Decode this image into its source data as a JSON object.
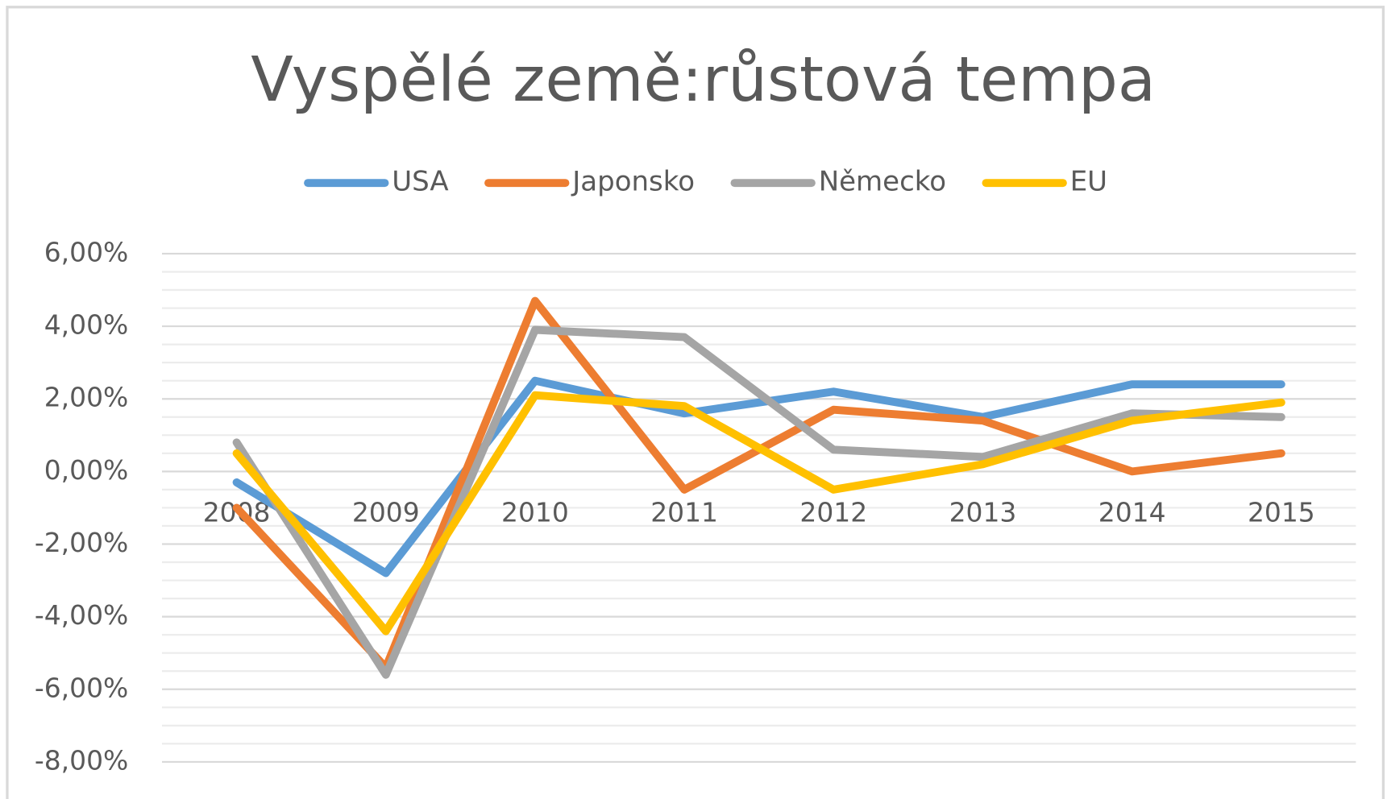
{
  "chart_data": {
    "type": "line",
    "title": "Vyspělé země:růstová tempa",
    "categories": [
      "2008",
      "2009",
      "2010",
      "2011",
      "2012",
      "2013",
      "2014",
      "2015"
    ],
    "series": [
      {
        "name": "USA",
        "color": "#5b9bd5",
        "values": [
          -0.3,
          -2.8,
          2.5,
          1.6,
          2.2,
          1.5,
          2.4,
          2.4
        ]
      },
      {
        "name": "Japonsko",
        "color": "#ed7d31",
        "values": [
          -1.0,
          -5.4,
          4.7,
          -0.5,
          1.7,
          1.4,
          0.0,
          0.5
        ]
      },
      {
        "name": "Německo",
        "color": "#a5a5a5",
        "values": [
          0.8,
          -5.6,
          3.9,
          3.7,
          0.6,
          0.4,
          1.6,
          1.5
        ]
      },
      {
        "name": "EU",
        "color": "#ffc000",
        "values": [
          0.5,
          -4.4,
          2.1,
          1.8,
          -0.5,
          0.2,
          1.4,
          1.9
        ]
      }
    ],
    "ylim": [
      -8,
      6
    ],
    "yticks": [
      {
        "value": -8,
        "label": "-8,00%"
      },
      {
        "value": -6,
        "label": "-6,00%"
      },
      {
        "value": -4,
        "label": "-4,00%"
      },
      {
        "value": -2,
        "label": "-2,00%"
      },
      {
        "value": 0,
        "label": "0,00%"
      },
      {
        "value": 2,
        "label": "2,00%"
      },
      {
        "value": 4,
        "label": "4,00%"
      },
      {
        "value": 6,
        "label": "6,00%"
      }
    ],
    "grid": true,
    "minor_grid": true,
    "legend": "top"
  }
}
